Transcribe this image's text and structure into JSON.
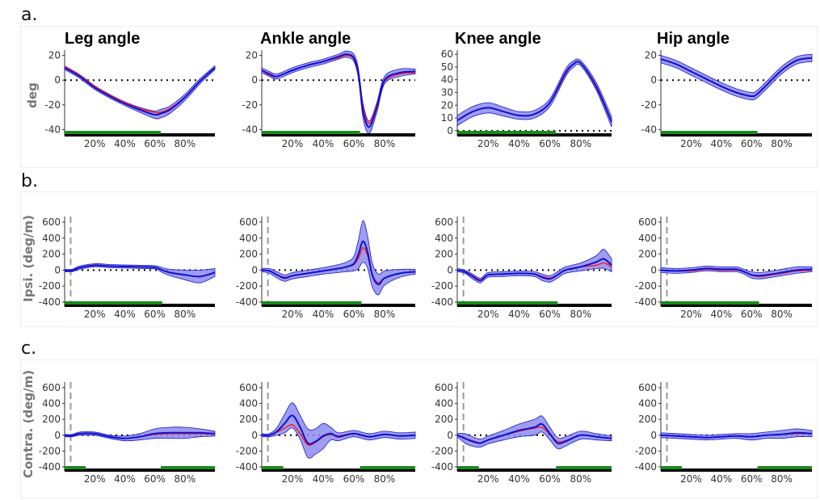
{
  "row_labels": [
    "a.",
    "b.",
    "c."
  ],
  "titles": [
    "Leg angle",
    "Ankle angle",
    "Knee angle",
    "Hip angle"
  ],
  "ylabels": [
    "deg",
    "Ipsi. (deg/m)",
    "Contra. (deg/m)"
  ],
  "colors": {
    "mean": "#1010cc",
    "band": "#8c8cf0",
    "band_edge": "#1a1ad0",
    "ref": "#ff2020",
    "stance": "#1b8a1b",
    "axisbar": "#000000",
    "dashed": "#999999"
  },
  "chart_data": [
    {
      "type": "line",
      "title": "Leg angle",
      "ylabel": "deg",
      "ylim": [
        -43,
        23
      ],
      "yticks": [
        -40,
        -20,
        0,
        20
      ],
      "xticks": [
        "20%",
        "40%",
        "60%",
        "80%"
      ],
      "xlim": [
        0,
        100
      ],
      "stance": [
        [
          0,
          64
        ]
      ],
      "x": [
        0,
        10,
        20,
        30,
        40,
        50,
        60,
        64,
        70,
        80,
        90,
        100
      ],
      "series": [
        {
          "name": "mean",
          "values": [
            10,
            3,
            -6,
            -13,
            -19,
            -24,
            -28,
            -27,
            -24,
            -14,
            -1,
            10
          ],
          "sd": [
            1.5,
            1.5,
            1.5,
            1.5,
            1.5,
            2,
            3,
            3.5,
            3,
            2.5,
            2,
            1.5
          ]
        },
        {
          "name": "reference",
          "values": [
            11,
            4,
            -5,
            -12,
            -18,
            -23,
            -26,
            -26,
            -23,
            -14,
            -1,
            10
          ]
        }
      ]
    },
    {
      "type": "line",
      "title": "Ankle angle",
      "ylim": [
        -43,
        23
      ],
      "yticks": [
        -40,
        -20,
        0,
        20
      ],
      "xticks": [
        "20%",
        "40%",
        "60%",
        "80%"
      ],
      "xlim": [
        0,
        100
      ],
      "stance": [
        [
          0,
          64
        ]
      ],
      "x": [
        0,
        5,
        10,
        20,
        30,
        40,
        50,
        55,
        60,
        63,
        66,
        70,
        75,
        80,
        90,
        100
      ],
      "series": [
        {
          "name": "mean",
          "values": [
            8,
            5,
            3,
            8,
            12,
            15,
            19,
            21,
            18,
            5,
            -25,
            -38,
            -22,
            0,
            6,
            7
          ],
          "sd": [
            2,
            2,
            2,
            2,
            2,
            2,
            2,
            2.5,
            3,
            4,
            6,
            5,
            4,
            3,
            3,
            2
          ]
        },
        {
          "name": "reference",
          "values": [
            8,
            4,
            3,
            8,
            12,
            15,
            18,
            20,
            17,
            3,
            -22,
            -35,
            -20,
            -1,
            5,
            6
          ]
        }
      ]
    },
    {
      "type": "line",
      "title": "Knee angle",
      "ylim": [
        -2,
        62
      ],
      "yticks": [
        0,
        10,
        20,
        30,
        40,
        50,
        60
      ],
      "xticks": [
        "20%",
        "40%",
        "60%",
        "80%"
      ],
      "xlim": [
        0,
        100
      ],
      "stance": [
        [
          0,
          64
        ]
      ],
      "x": [
        0,
        10,
        20,
        30,
        40,
        50,
        60,
        70,
        75,
        80,
        90,
        100
      ],
      "series": [
        {
          "name": "mean",
          "values": [
            8,
            15,
            18,
            15,
            12,
            13,
            22,
            45,
            52,
            53,
            35,
            7
          ],
          "sd": [
            4,
            4,
            4,
            3.5,
            3,
            3,
            3,
            3,
            2.5,
            2,
            3,
            4
          ]
        },
        {
          "name": "reference",
          "values": [
            8,
            15,
            18,
            15,
            12,
            13,
            22,
            44,
            52,
            53,
            34,
            7
          ]
        }
      ]
    },
    {
      "type": "line",
      "title": "Hip angle",
      "ylim": [
        -43,
        23
      ],
      "yticks": [
        -40,
        -20,
        0,
        20
      ],
      "xticks": [
        "20%",
        "40%",
        "60%",
        "80%"
      ],
      "xlim": [
        0,
        100
      ],
      "stance": [
        [
          0,
          64
        ]
      ],
      "x": [
        0,
        10,
        20,
        30,
        40,
        50,
        60,
        64,
        70,
        80,
        90,
        100
      ],
      "series": [
        {
          "name": "mean",
          "values": [
            17,
            13,
            7,
            1,
            -5,
            -10,
            -13,
            -11,
            -4,
            8,
            16,
            18
          ],
          "sd": [
            3,
            3,
            3,
            3,
            3,
            3,
            3,
            3,
            3,
            3,
            3,
            3
          ]
        },
        {
          "name": "reference",
          "values": [
            17,
            13,
            7,
            1,
            -5,
            -10,
            -13,
            -11,
            -4,
            8,
            16,
            18
          ]
        }
      ]
    },
    {
      "type": "line",
      "ylabel": "Ipsi. (deg/m)",
      "ylim": [
        -420,
        650
      ],
      "yticks": [
        -400,
        -200,
        0,
        200,
        400,
        600
      ],
      "xticks": [
        "20%",
        "40%",
        "60%",
        "80%"
      ],
      "xlim": [
        0,
        100
      ],
      "stance": [
        [
          0,
          65
        ]
      ],
      "marker_x": 4,
      "x": [
        0,
        5,
        10,
        20,
        30,
        40,
        50,
        60,
        65,
        70,
        80,
        90,
        100
      ],
      "series": [
        {
          "name": "mean",
          "values": [
            -5,
            -5,
            30,
            60,
            50,
            45,
            40,
            35,
            0,
            -30,
            -60,
            -80,
            -30
          ],
          "sd": [
            15,
            15,
            20,
            20,
            20,
            20,
            20,
            20,
            30,
            40,
            60,
            80,
            50
          ]
        },
        {
          "name": "reference",
          "values": [
            -5,
            -5,
            30,
            55,
            50,
            45,
            40,
            35,
            0,
            -30,
            -60,
            -80,
            -30
          ]
        }
      ]
    },
    {
      "type": "line",
      "ylim": [
        -420,
        650
      ],
      "yticks": [
        -400,
        -200,
        0,
        200,
        400,
        600
      ],
      "xticks": [
        "20%",
        "40%",
        "60%",
        "80%"
      ],
      "xlim": [
        0,
        100
      ],
      "stance": [
        [
          0,
          65
        ]
      ],
      "marker_x": 4,
      "x": [
        0,
        5,
        10,
        15,
        20,
        30,
        40,
        50,
        55,
        60,
        63,
        66,
        69,
        72,
        76,
        80,
        90,
        100
      ],
      "series": [
        {
          "name": "mean",
          "values": [
            0,
            -10,
            -60,
            -100,
            -70,
            -40,
            -10,
            20,
            40,
            80,
            200,
            360,
            220,
            -60,
            -180,
            -100,
            -40,
            -20
          ],
          "sd": [
            20,
            30,
            40,
            40,
            40,
            40,
            40,
            50,
            60,
            90,
            180,
            260,
            200,
            150,
            130,
            90,
            50,
            30
          ]
        },
        {
          "name": "reference",
          "values": [
            0,
            -10,
            -60,
            -90,
            -70,
            -40,
            -10,
            20,
            40,
            70,
            150,
            280,
            180,
            -60,
            -160,
            -100,
            -40,
            -20
          ]
        }
      ]
    },
    {
      "type": "line",
      "ylim": [
        -420,
        650
      ],
      "yticks": [
        -400,
        -200,
        0,
        200,
        400,
        600
      ],
      "xticks": [
        "20%",
        "40%",
        "60%",
        "80%"
      ],
      "xlim": [
        0,
        100
      ],
      "stance": [
        [
          0,
          65
        ]
      ],
      "marker_x": 4,
      "x": [
        0,
        5,
        10,
        15,
        20,
        30,
        40,
        50,
        55,
        60,
        65,
        70,
        80,
        90,
        95,
        100
      ],
      "series": [
        {
          "name": "mean",
          "values": [
            0,
            -20,
            -80,
            -130,
            -60,
            -50,
            -40,
            -50,
            -90,
            -110,
            -60,
            0,
            40,
            100,
            140,
            60
          ],
          "sd": [
            20,
            20,
            30,
            30,
            30,
            30,
            30,
            30,
            40,
            40,
            40,
            40,
            50,
            80,
            120,
            80
          ]
        },
        {
          "name": "reference",
          "values": [
            0,
            -20,
            -70,
            -120,
            -60,
            -50,
            -40,
            -50,
            -80,
            -100,
            -60,
            0,
            40,
            60,
            90,
            40
          ]
        }
      ]
    },
    {
      "type": "line",
      "ylim": [
        -420,
        650
      ],
      "yticks": [
        -400,
        -200,
        0,
        200,
        400,
        600
      ],
      "xticks": [
        "20%",
        "40%",
        "60%",
        "80%"
      ],
      "xlim": [
        0,
        100
      ],
      "stance": [
        [
          0,
          65
        ]
      ],
      "marker_x": 4,
      "x": [
        0,
        10,
        20,
        30,
        40,
        50,
        55,
        60,
        65,
        70,
        80,
        90,
        100
      ],
      "series": [
        {
          "name": "mean",
          "values": [
            0,
            -10,
            0,
            20,
            10,
            10,
            -20,
            -60,
            -70,
            -60,
            -30,
            0,
            10
          ],
          "sd": [
            30,
            30,
            30,
            30,
            30,
            30,
            30,
            40,
            40,
            40,
            40,
            40,
            30
          ]
        },
        {
          "name": "reference",
          "values": [
            0,
            -10,
            -10,
            10,
            0,
            0,
            -20,
            -60,
            -80,
            -70,
            -40,
            -10,
            0
          ]
        }
      ]
    },
    {
      "type": "line",
      "ylabel": "Contra. (deg/m)",
      "ylim": [
        -420,
        650
      ],
      "yticks": [
        -400,
        -200,
        0,
        200,
        400,
        600
      ],
      "xticks": [
        "20%",
        "40%",
        "60%",
        "80%"
      ],
      "xlim": [
        0,
        100
      ],
      "stance": [
        [
          0,
          14
        ],
        [
          64,
          100
        ]
      ],
      "marker_x": 4,
      "x": [
        0,
        5,
        10,
        20,
        30,
        40,
        50,
        60,
        70,
        80,
        90,
        100
      ],
      "series": [
        {
          "name": "mean",
          "values": [
            -5,
            -5,
            20,
            20,
            -20,
            -40,
            -20,
            20,
            30,
            30,
            30,
            20
          ],
          "sd": [
            15,
            15,
            20,
            20,
            20,
            30,
            40,
            60,
            70,
            70,
            50,
            30
          ]
        },
        {
          "name": "reference",
          "values": [
            -5,
            -5,
            20,
            20,
            -20,
            -40,
            -20,
            10,
            20,
            20,
            20,
            15
          ]
        }
      ]
    },
    {
      "type": "line",
      "ylim": [
        -420,
        650
      ],
      "yticks": [
        -400,
        -200,
        0,
        200,
        400,
        600
      ],
      "xticks": [
        "20%",
        "40%",
        "60%",
        "80%"
      ],
      "xlim": [
        0,
        100
      ],
      "stance": [
        [
          0,
          14
        ],
        [
          64,
          100
        ]
      ],
      "marker_x": 4,
      "x": [
        0,
        5,
        10,
        15,
        20,
        25,
        30,
        35,
        40,
        45,
        50,
        60,
        70,
        80,
        90,
        100
      ],
      "series": [
        {
          "name": "mean",
          "values": [
            0,
            0,
            50,
            150,
            250,
            100,
            -100,
            -80,
            -10,
            20,
            -20,
            20,
            -20,
            10,
            -10,
            0
          ],
          "sd": [
            20,
            20,
            50,
            120,
            160,
            150,
            180,
            160,
            160,
            80,
            50,
            40,
            40,
            40,
            40,
            40
          ]
        },
        {
          "name": "reference",
          "values": [
            0,
            0,
            40,
            90,
            130,
            20,
            -120,
            -90,
            -20,
            10,
            -10,
            20,
            -20,
            10,
            -10,
            0
          ]
        }
      ]
    },
    {
      "type": "line",
      "ylim": [
        -420,
        650
      ],
      "yticks": [
        -400,
        -200,
        0,
        200,
        400,
        600
      ],
      "xticks": [
        "20%",
        "40%",
        "60%",
        "80%"
      ],
      "xlim": [
        0,
        100
      ],
      "stance": [
        [
          0,
          14
        ],
        [
          64,
          100
        ]
      ],
      "marker_x": 4,
      "x": [
        0,
        5,
        10,
        15,
        20,
        30,
        40,
        50,
        55,
        60,
        65,
        70,
        80,
        90,
        100
      ],
      "series": [
        {
          "name": "mean",
          "values": [
            0,
            -40,
            -80,
            -100,
            -60,
            0,
            60,
            100,
            140,
            20,
            -100,
            -80,
            0,
            -20,
            -40
          ],
          "sd": [
            20,
            60,
            60,
            50,
            50,
            60,
            80,
            100,
            100,
            80,
            70,
            60,
            50,
            40,
            30
          ]
        },
        {
          "name": "reference",
          "values": [
            0,
            -40,
            -70,
            -100,
            -60,
            0,
            50,
            90,
            100,
            10,
            -80,
            -70,
            0,
            -20,
            -40
          ]
        }
      ]
    },
    {
      "type": "line",
      "ylim": [
        -420,
        650
      ],
      "yticks": [
        -400,
        -200,
        0,
        200,
        400,
        600
      ],
      "xticks": [
        "20%",
        "40%",
        "60%",
        "80%"
      ],
      "xlim": [
        0,
        100
      ],
      "stance": [
        [
          0,
          14
        ],
        [
          64,
          100
        ]
      ],
      "marker_x": 4,
      "x": [
        0,
        10,
        20,
        30,
        40,
        50,
        60,
        70,
        80,
        90,
        100
      ],
      "series": [
        {
          "name": "mean",
          "values": [
            0,
            -10,
            -20,
            -30,
            -20,
            -10,
            -20,
            0,
            10,
            30,
            20
          ],
          "sd": [
            30,
            30,
            30,
            30,
            30,
            30,
            40,
            40,
            50,
            50,
            40
          ]
        },
        {
          "name": "reference",
          "values": [
            0,
            -10,
            -20,
            -30,
            -20,
            -10,
            -20,
            0,
            10,
            20,
            20
          ]
        }
      ]
    }
  ]
}
